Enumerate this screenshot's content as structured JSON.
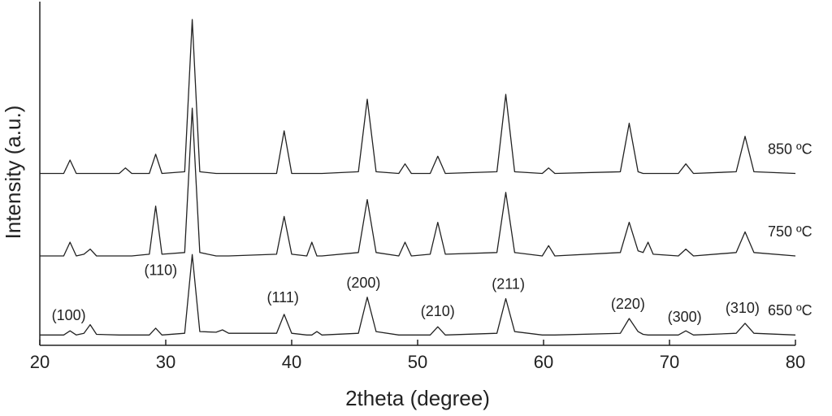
{
  "chart_data": {
    "type": "line",
    "xlabel": "2theta (degree)",
    "ylabel": "Intensity (a.u.)",
    "xlim": [
      20,
      80
    ],
    "xticks": [
      20,
      30,
      40,
      50,
      60,
      70,
      80
    ],
    "ylim": [
      0,
      100
    ],
    "x": [
      20,
      21.9,
      22.4,
      22.9,
      23.5,
      24,
      24.5,
      26.3,
      26.8,
      27.3,
      28.7,
      29.2,
      29.7,
      31.5,
      32.1,
      32.7,
      34,
      34.5,
      35,
      38.8,
      39.4,
      40,
      41.2,
      41.6,
      42,
      42.4,
      45.3,
      46,
      46.7,
      48.5,
      49,
      49.5,
      51,
      51.6,
      52.2,
      56.3,
      57,
      57.7,
      59.9,
      60.4,
      60.9,
      66.1,
      66.8,
      67.5,
      67.9,
      68.3,
      68.7,
      70.7,
      71.3,
      71.9,
      75.3,
      76,
      76.7,
      80
    ],
    "series": [
      {
        "name": "650 ºC",
        "color": "#222222",
        "values": [
          3,
          3,
          4.2,
          3,
          3.5,
          6,
          3.2,
          3,
          3,
          3,
          3,
          5,
          3,
          3.5,
          26.4,
          4,
          3.8,
          4.5,
          3.5,
          3.5,
          9,
          3.5,
          3,
          3,
          4,
          3,
          3.5,
          14,
          4,
          3,
          3,
          3,
          3,
          5.4,
          3,
          3.5,
          13.6,
          4,
          3,
          3,
          3,
          3.5,
          7.8,
          4,
          3.2,
          3,
          3,
          3,
          4.2,
          3,
          3.5,
          6.4,
          3.5,
          3
        ]
      },
      {
        "name": "750 ºC",
        "color": "#222222",
        "values": [
          26,
          26,
          30,
          26,
          26.5,
          28,
          26,
          26,
          26,
          26,
          26.5,
          40.5,
          26.5,
          27,
          69,
          27,
          26,
          26,
          26,
          26.5,
          37.5,
          26.5,
          26,
          30,
          26,
          26,
          27,
          42.4,
          27,
          26,
          30,
          26,
          26.5,
          35.8,
          26.5,
          27,
          44.5,
          27,
          26,
          29,
          26,
          27,
          35.8,
          27.5,
          27,
          30,
          26.5,
          26,
          28,
          26,
          27,
          33,
          27,
          26
        ]
      },
      {
        "name": "850 ºC",
        "color": "#222222",
        "values": [
          50,
          50,
          53.9,
          50,
          50,
          50,
          50,
          50,
          51.6,
          50,
          50,
          55.6,
          50,
          50.5,
          94.8,
          50.5,
          50,
          50,
          50,
          50,
          62.4,
          50,
          50,
          50,
          50,
          50,
          50.5,
          71.6,
          50.5,
          50,
          52.8,
          50,
          50,
          55,
          50,
          50.5,
          73,
          50.5,
          50,
          51.6,
          50,
          50.5,
          64.6,
          50.5,
          50,
          50,
          50,
          50,
          52.8,
          50,
          50.5,
          60.8,
          50.5,
          50
        ]
      }
    ],
    "annotations": [
      {
        "text": "(100)",
        "x": 22.3,
        "y": 8.5
      },
      {
        "text": "(110)",
        "x": 29.6,
        "y": 21.6
      },
      {
        "text": "(111)",
        "x": 39.3,
        "y": 13.6
      },
      {
        "text": "(200)",
        "x": 45.7,
        "y": 17.9
      },
      {
        "text": "(210)",
        "x": 51.6,
        "y": 9.6
      },
      {
        "text": "(211)",
        "x": 57.2,
        "y": 17.6
      },
      {
        "text": "(220)",
        "x": 66.7,
        "y": 11.8
      },
      {
        "text": "(300)",
        "x": 71.2,
        "y": 8
      },
      {
        "text": "(310)",
        "x": 75.8,
        "y": 10.6
      }
    ]
  }
}
